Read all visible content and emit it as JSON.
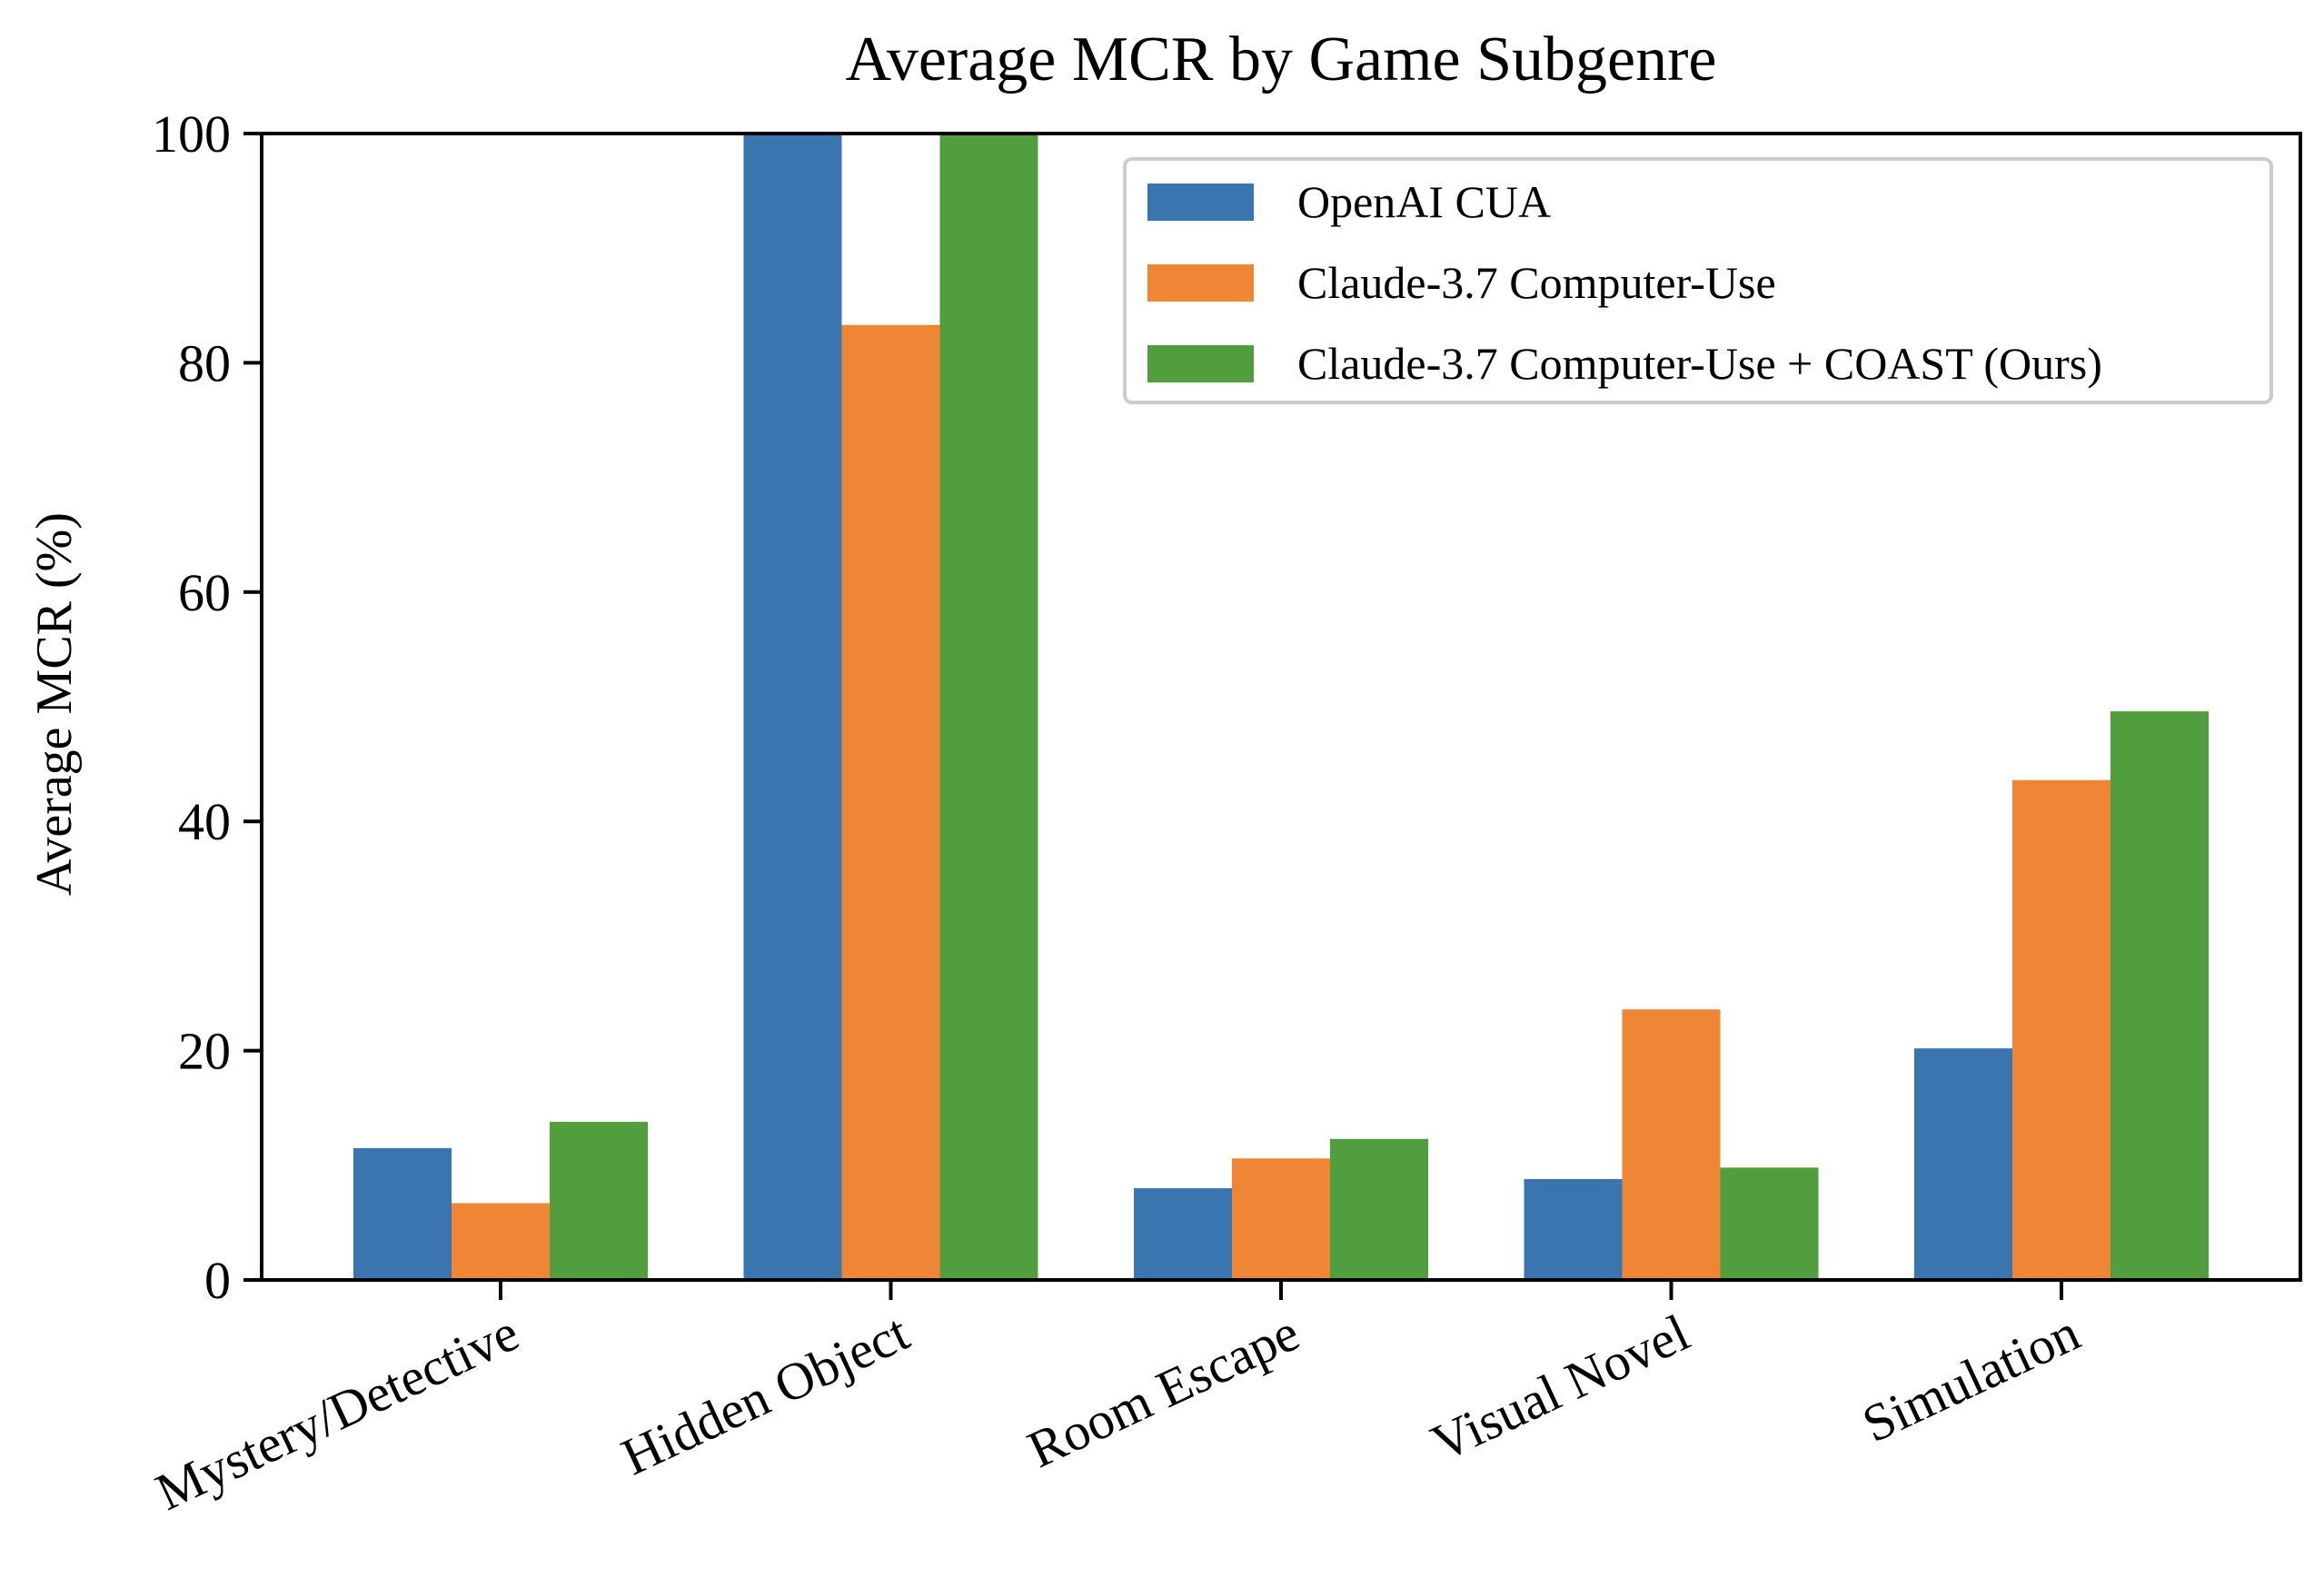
{
  "chart_data": {
    "type": "bar",
    "title": "Average MCR by Game Subgenre",
    "xlabel": "",
    "ylabel": "Average MCR (%)",
    "ylim": [
      0,
      100
    ],
    "yticks": [
      0,
      20,
      40,
      60,
      80,
      100
    ],
    "categories": [
      "Mystery/Detective",
      "Hidden Object",
      "Room Escape",
      "Visual Novel",
      "Simulation"
    ],
    "series": [
      {
        "name": "OpenAI CUA",
        "color": "#3b75af",
        "values": [
          11.5,
          100,
          8,
          8.8,
          20.2
        ]
      },
      {
        "name": "Claude-3.7 Computer-Use",
        "color": "#ef8636",
        "values": [
          6.7,
          83.3,
          10.6,
          23.6,
          43.6
        ]
      },
      {
        "name": "Claude-3.7 Computer-Use + COAST (Ours)",
        "color": "#519e3e",
        "values": [
          13.8,
          100,
          12.3,
          9.8,
          49.6
        ]
      }
    ],
    "legend_position": "top-right",
    "grid": false
  }
}
